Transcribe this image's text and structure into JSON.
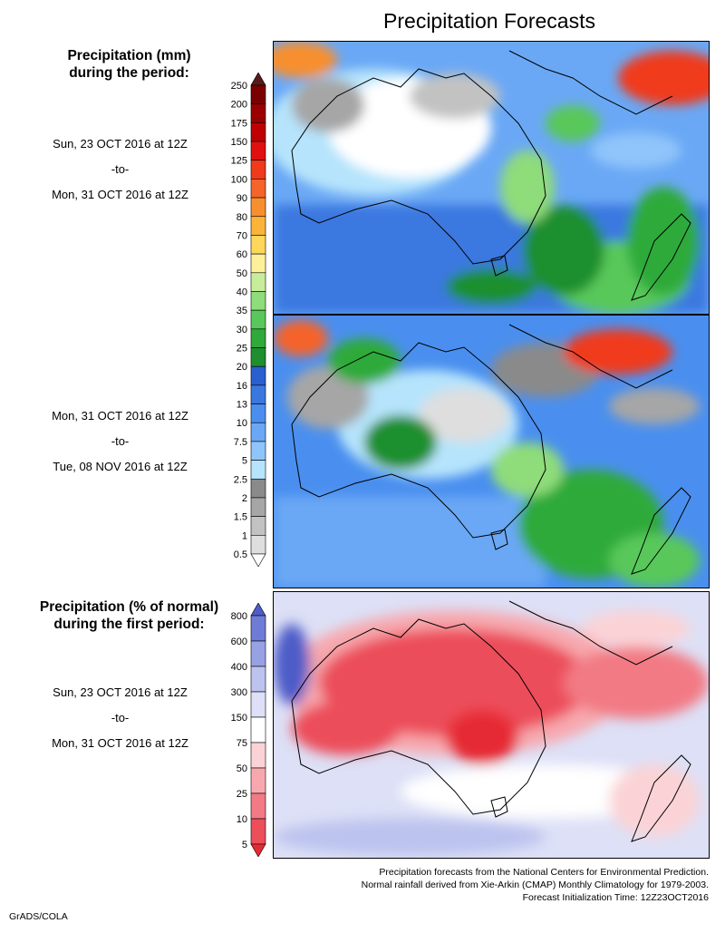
{
  "title": "Precipitation Forecasts",
  "section_amount": {
    "heading_line1": "Precipitation (mm)",
    "heading_line2": "during the period:"
  },
  "period1": {
    "start": "Sun, 23 OCT 2016 at 12Z",
    "sep": "-to-",
    "end": "Mon, 31 OCT 2016 at 12Z"
  },
  "period2": {
    "start": "Mon, 31 OCT 2016 at 12Z",
    "sep": "-to-",
    "end": "Tue, 08 NOV 2016 at 12Z"
  },
  "section_percent": {
    "heading_line1": "Precipitation (% of normal)",
    "heading_line2": "during the first period:"
  },
  "period3": {
    "start": "Sun, 23 OCT 2016 at 12Z",
    "sep": "-to-",
    "end": "Mon, 31 OCT 2016 at 12Z"
  },
  "mm_scale": {
    "labels": [
      "250",
      "200",
      "175",
      "150",
      "125",
      "100",
      "90",
      "80",
      "70",
      "60",
      "50",
      "40",
      "35",
      "30",
      "25",
      "20",
      "16",
      "13",
      "10",
      "7.5",
      "5",
      "2.5",
      "2",
      "1.5",
      "1",
      "0.5"
    ],
    "colors": [
      "#5a1a1a",
      "#7a0000",
      "#9a0000",
      "#c00000",
      "#e01010",
      "#f03a1a",
      "#f5642a",
      "#f88f2e",
      "#fab43a",
      "#fcd75a",
      "#fdf09a",
      "#c8ed9a",
      "#8fdc7a",
      "#58c85a",
      "#2faa3a",
      "#1e8f2e",
      "#2a5fcf",
      "#3a78e0",
      "#4a8fef",
      "#6aa8f5",
      "#8fc5fa",
      "#b6e4fc",
      "#8a8a8a",
      "#a6a6a6",
      "#c2c2c2",
      "#dedede",
      "#ffffff"
    ]
  },
  "pct_scale": {
    "labels": [
      "800",
      "600",
      "400",
      "300",
      "150",
      "75",
      "50",
      "25",
      "10",
      "5"
    ],
    "colors": [
      "#4e5cc8",
      "#6e7cd6",
      "#97a2e4",
      "#bcc3ee",
      "#dde0f6",
      "#ffffff",
      "#fbd3d6",
      "#f7a8ae",
      "#f27a84",
      "#ec4e5a",
      "#e62a34"
    ]
  },
  "footer": {
    "line1": "Precipitation forecasts from the National Centers for Environmental Prediction.",
    "line2": "Normal rainfall derived from Xie-Arkin (CMAP) Monthly Climatology for 1979-2003.",
    "line3": "Forecast Initialization Time: 12Z23OCT2016"
  },
  "credit": "GrADS/COLA"
}
